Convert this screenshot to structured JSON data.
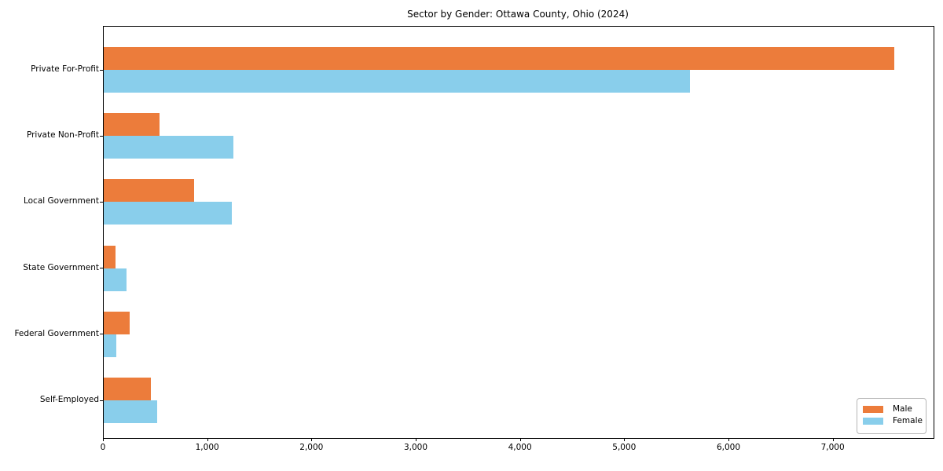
{
  "chart_data": {
    "type": "bar",
    "orientation": "horizontal",
    "title": "Sector by Gender: Ottawa County, Ohio (2024)",
    "categories": [
      "Private For-Profit",
      "Private Non-Profit",
      "Local Government",
      "State Government",
      "Federal Government",
      "Self-Employed"
    ],
    "series": [
      {
        "name": "Male",
        "color": "#ec7c3b",
        "values": [
          7580,
          535,
          870,
          115,
          248,
          450
        ]
      },
      {
        "name": "Female",
        "color": "#89ceeb",
        "values": [
          5625,
          1245,
          1225,
          220,
          118,
          515
        ]
      }
    ],
    "xlabel": "",
    "ylabel": "",
    "xlim": [
      0,
      7960
    ],
    "x_ticks": [
      0,
      1000,
      2000,
      3000,
      4000,
      5000,
      6000,
      7000
    ],
    "x_tick_labels": [
      "0",
      "1,000",
      "2,000",
      "3,000",
      "4,000",
      "5,000",
      "6,000",
      "7,000"
    ],
    "grid": false,
    "legend": {
      "position": "lower right",
      "entries": [
        "Male",
        "Female"
      ]
    },
    "colors": {
      "spine": "#000000",
      "background": "#ffffff",
      "legend_border": "#b7b7b7"
    }
  }
}
